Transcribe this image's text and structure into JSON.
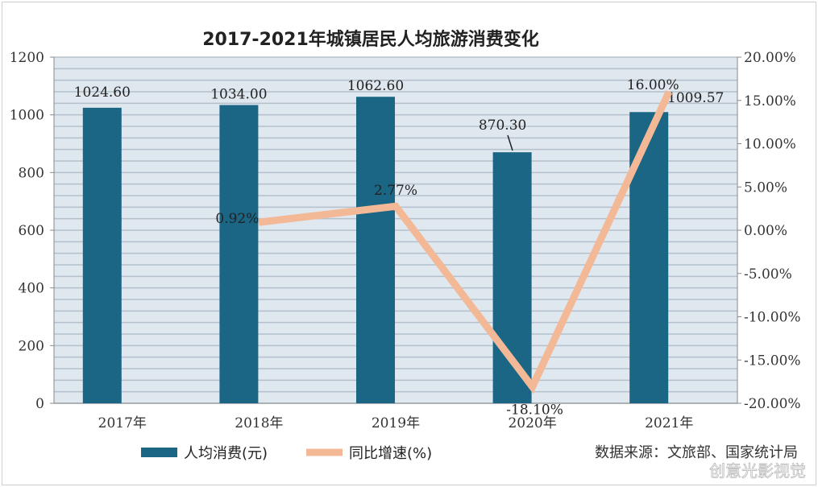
{
  "chart_data": {
    "type": "bar",
    "title": "2017-2021年城镇居民人均旅游消费变化",
    "categories": [
      "2017年",
      "2018年",
      "2019年",
      "2020年",
      "2021年"
    ],
    "series": [
      {
        "name": "人均消费(元)",
        "type": "bar",
        "axis": "left",
        "values": [
          1024.6,
          1034.0,
          1062.6,
          870.3,
          1009.57
        ],
        "labels": [
          "1024.60",
          "1034.00",
          "1062.60",
          "870.30",
          "1009.57"
        ],
        "color": "#1b6585"
      },
      {
        "name": "同比增速(%)",
        "type": "line",
        "axis": "right",
        "values": [
          null,
          0.92,
          2.77,
          -18.1,
          16.0
        ],
        "labels": [
          "",
          "0.92%",
          "2.77%",
          "-18.10%",
          "16.00%"
        ],
        "color": "#f3b896"
      }
    ],
    "left_axis": {
      "ylim": [
        0,
        1200
      ],
      "ticks": [
        "0",
        "200",
        "400",
        "600",
        "800",
        "1000",
        "1200"
      ]
    },
    "right_axis": {
      "ylim": [
        -20,
        20
      ],
      "ticks": [
        "-20.00%",
        "-15.00%",
        "-10.00%",
        "-5.00%",
        "0.00%",
        "5.00%",
        "10.00%",
        "15.00%",
        "20.00%"
      ]
    },
    "grid": true,
    "legend": "bottom-left",
    "source": "数据来源：文旅部、国家统计局",
    "watermark": "创意光影视觉"
  }
}
